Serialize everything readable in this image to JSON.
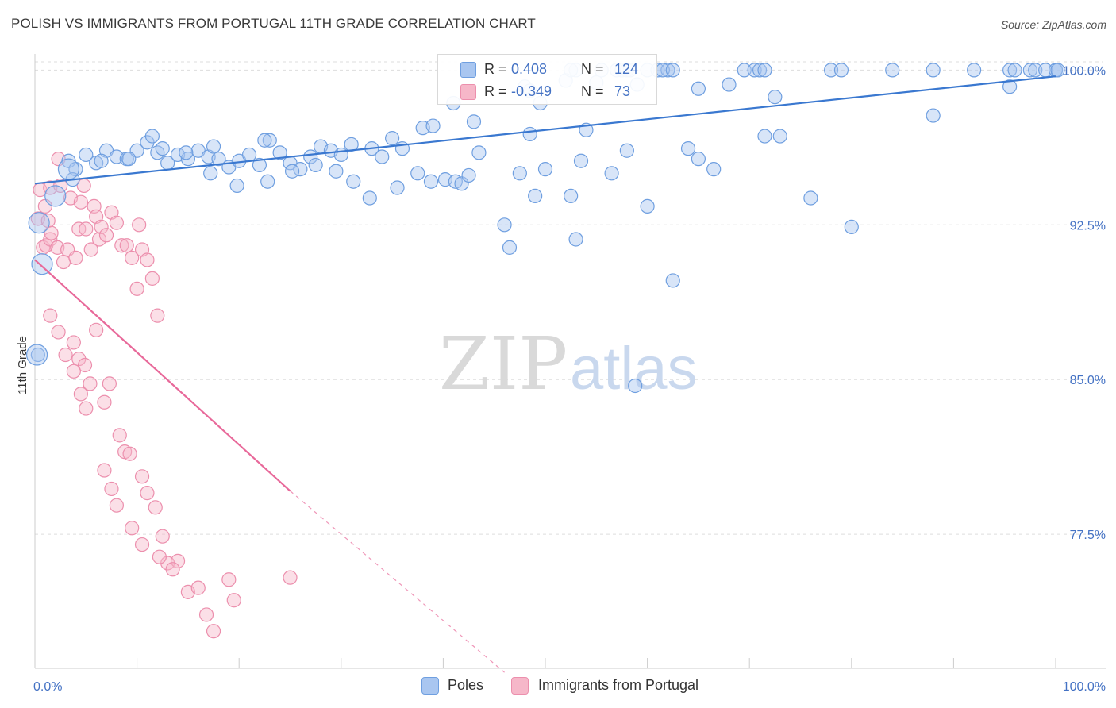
{
  "header": {
    "title": "POLISH VS IMMIGRANTS FROM PORTUGAL 11TH GRADE CORRELATION CHART",
    "source": "Source: ZipAtlas.com"
  },
  "watermark": {
    "zip": "ZIP",
    "atlas": "atlas"
  },
  "legend": {
    "rows": [
      {
        "r_label": "R =",
        "r_value": "0.408",
        "n_label": "N =",
        "n_value": "124",
        "color": "#a9c6f0"
      },
      {
        "r_label": "R =",
        "r_value": "-0.349",
        "n_label": "N =",
        "n_value": "73",
        "color": "#f6b7c9"
      }
    ]
  },
  "bottom_legend": {
    "items": [
      {
        "label": "Poles",
        "color": "#a9c6f0"
      },
      {
        "label": "Immigrants from Portugal",
        "color": "#f6b7c9"
      }
    ]
  },
  "colors": {
    "blue_fill": "#a9c6f0",
    "blue_stroke": "#6f9fe0",
    "blue_line": "#3a78d0",
    "pink_fill": "#f6b7c9",
    "pink_stroke": "#ec8fad",
    "pink_line": "#e8699a",
    "grid": "#dddddd",
    "axis_label": "#4472c4"
  },
  "chart_data": {
    "type": "scatter",
    "title": "POLISH VS IMMIGRANTS FROM PORTUGAL 11TH GRADE CORRELATION CHART",
    "xlabel": "",
    "ylabel": "11th Grade",
    "xlim": [
      0,
      100
    ],
    "ylim": [
      71.0,
      100.4
    ],
    "x_tick_labels": [
      "0.0%",
      "100.0%"
    ],
    "y_ticks": [
      77.5,
      85.0,
      92.5,
      100.0
    ],
    "y_tick_labels": [
      "77.5%",
      "85.0%",
      "92.5%",
      "100.0%"
    ],
    "grid": true,
    "legend_position": "top-center",
    "series": [
      {
        "name": "Poles",
        "r": 0.408,
        "n": 124,
        "trend": {
          "x": [
            0,
            100
          ],
          "y": [
            94.5,
            99.7
          ],
          "dashed_after": null
        },
        "points": [
          [
            3.3,
            95.6
          ],
          [
            4,
            95.2
          ],
          [
            5,
            95.9
          ],
          [
            6,
            95.5
          ],
          [
            7,
            96.1
          ],
          [
            8,
            95.8
          ],
          [
            9,
            95.7
          ],
          [
            10,
            96.1
          ],
          [
            11,
            96.5
          ],
          [
            12,
            96.0
          ],
          [
            13,
            95.5
          ],
          [
            14,
            95.9
          ],
          [
            15,
            95.7
          ],
          [
            16,
            96.1
          ],
          [
            17,
            95.8
          ],
          [
            18,
            95.7
          ],
          [
            19,
            95.3
          ],
          [
            20,
            95.6
          ],
          [
            21,
            95.9
          ],
          [
            22,
            95.4
          ],
          [
            23,
            96.6
          ],
          [
            24,
            96.0
          ],
          [
            25,
            95.5
          ],
          [
            26,
            95.2
          ],
          [
            27,
            95.8
          ],
          [
            28,
            96.3
          ],
          [
            29,
            96.1
          ],
          [
            30,
            95.9
          ],
          [
            31,
            96.4
          ],
          [
            33,
            96.2
          ],
          [
            34,
            95.8
          ],
          [
            35,
            96.7
          ],
          [
            36,
            96.2
          ],
          [
            38,
            97.2
          ],
          [
            39,
            97.3
          ],
          [
            41,
            98.4
          ],
          [
            43,
            97.5
          ],
          [
            11.5,
            96.8
          ],
          [
            22.5,
            96.6
          ],
          [
            17.5,
            96.3
          ],
          [
            3.7,
            94.7
          ],
          [
            6.5,
            95.6
          ],
          [
            9.2,
            95.7
          ],
          [
            12.5,
            96.2
          ],
          [
            14.8,
            96.0
          ],
          [
            17.2,
            95.0
          ],
          [
            19.8,
            94.4
          ],
          [
            22.8,
            94.6
          ],
          [
            25.2,
            95.1
          ],
          [
            27.5,
            95.4
          ],
          [
            29.5,
            95.1
          ],
          [
            31.2,
            94.6
          ],
          [
            32.8,
            93.8
          ],
          [
            35.5,
            94.3
          ],
          [
            37.5,
            95.0
          ],
          [
            38.8,
            94.6
          ],
          [
            40.2,
            94.7
          ],
          [
            41.2,
            94.6
          ],
          [
            41.8,
            94.5
          ],
          [
            42.5,
            94.9
          ],
          [
            43.5,
            96.0
          ],
          [
            46,
            92.5
          ],
          [
            46.5,
            91.4
          ],
          [
            47.5,
            95.0
          ],
          [
            48.5,
            96.9
          ],
          [
            49,
            93.9
          ],
          [
            50,
            95.2
          ],
          [
            52.5,
            93.9
          ],
          [
            53,
            91.8
          ],
          [
            53.5,
            95.6
          ],
          [
            54,
            97.1
          ],
          [
            56.5,
            95.0
          ],
          [
            58,
            96.1
          ],
          [
            60,
            93.4
          ],
          [
            62.5,
            89.8
          ],
          [
            64,
            96.2
          ],
          [
            65,
            95.7
          ],
          [
            66.5,
            95.2
          ],
          [
            71.5,
            96.8
          ],
          [
            73,
            96.8
          ],
          [
            76,
            93.8
          ],
          [
            80,
            92.4
          ],
          [
            88,
            97.8
          ],
          [
            95.5,
            99.2
          ],
          [
            100,
            100
          ],
          [
            48,
            99.2
          ],
          [
            53,
            100
          ],
          [
            57,
            100
          ],
          [
            57.5,
            100
          ],
          [
            58,
            100
          ],
          [
            58.3,
            100
          ],
          [
            60,
            100
          ],
          [
            61,
            100
          ],
          [
            62,
            100
          ],
          [
            69.5,
            100
          ],
          [
            70.5,
            100
          ],
          [
            71,
            100
          ],
          [
            71.5,
            100
          ],
          [
            78,
            100
          ],
          [
            79,
            100
          ],
          [
            84,
            100
          ],
          [
            88,
            100
          ],
          [
            92,
            100
          ],
          [
            95.5,
            100
          ],
          [
            96,
            100
          ],
          [
            97.5,
            100
          ],
          [
            98,
            100
          ],
          [
            99,
            100
          ],
          [
            100,
            100
          ],
          [
            100.2,
            100
          ],
          [
            49.5,
            98.4
          ],
          [
            48.5,
            99.0
          ],
          [
            52,
            99.5
          ],
          [
            55,
            99.4
          ],
          [
            59,
            99.3
          ],
          [
            65,
            99.1
          ],
          [
            68,
            99.3
          ],
          [
            72.5,
            98.7
          ],
          [
            52.5,
            100
          ],
          [
            55.5,
            100
          ],
          [
            61.5,
            100
          ],
          [
            62.5,
            100
          ],
          [
            0.3,
            86.2
          ],
          [
            58.8,
            84.7
          ]
        ]
      },
      {
        "name": "Immigrants from Portugal",
        "r": -0.349,
        "n": 73,
        "trend": {
          "x": [
            0,
            25,
            46
          ],
          "y": [
            90.8,
            79.6,
            70.8
          ],
          "dashed_after": 25
        },
        "points": [
          [
            0.3,
            92.8
          ],
          [
            0.5,
            94.2
          ],
          [
            0.8,
            91.4
          ],
          [
            1,
            93.4
          ],
          [
            1.1,
            91.5
          ],
          [
            1.3,
            92.7
          ],
          [
            1.5,
            91.8
          ],
          [
            1.6,
            92.1
          ],
          [
            2.2,
            91.4
          ],
          [
            1.5,
            94.3
          ],
          [
            2.3,
            95.7
          ],
          [
            2.5,
            94.4
          ],
          [
            2.8,
            90.7
          ],
          [
            3.2,
            91.3
          ],
          [
            3.5,
            93.8
          ],
          [
            4,
            90.9
          ],
          [
            4.3,
            92.3
          ],
          [
            4.5,
            93.6
          ],
          [
            4.8,
            94.4
          ],
          [
            5,
            92.3
          ],
          [
            5.5,
            91.3
          ],
          [
            5.8,
            93.4
          ],
          [
            6,
            92.9
          ],
          [
            6.3,
            91.8
          ],
          [
            6.5,
            92.4
          ],
          [
            7,
            92.0
          ],
          [
            7.5,
            93.1
          ],
          [
            8,
            92.6
          ],
          [
            8.5,
            91.5
          ],
          [
            9,
            91.5
          ],
          [
            9.5,
            90.9
          ],
          [
            10,
            89.4
          ],
          [
            10.2,
            92.5
          ],
          [
            10.5,
            91.3
          ],
          [
            11,
            90.8
          ],
          [
            11.5,
            89.9
          ],
          [
            12,
            88.1
          ],
          [
            1.5,
            88.1
          ],
          [
            2.3,
            87.3
          ],
          [
            3,
            86.2
          ],
          [
            3.8,
            86.8
          ],
          [
            4.3,
            86.0
          ],
          [
            4.9,
            85.7
          ],
          [
            5.4,
            84.8
          ],
          [
            6,
            87.4
          ],
          [
            6.8,
            83.9
          ],
          [
            7.3,
            84.8
          ],
          [
            8.3,
            82.3
          ],
          [
            8.8,
            81.5
          ],
          [
            9.3,
            81.4
          ],
          [
            10.5,
            80.3
          ],
          [
            11,
            79.5
          ],
          [
            11.8,
            78.8
          ],
          [
            12.5,
            77.4
          ],
          [
            13,
            76.1
          ],
          [
            14,
            76.2
          ],
          [
            15,
            74.7
          ],
          [
            16,
            74.9
          ],
          [
            16.8,
            73.6
          ],
          [
            17.5,
            72.8
          ],
          [
            19,
            75.3
          ],
          [
            19.5,
            74.3
          ],
          [
            25,
            75.4
          ],
          [
            3.8,
            85.4
          ],
          [
            4.5,
            84.3
          ],
          [
            5,
            83.6
          ],
          [
            6.8,
            80.6
          ],
          [
            7.5,
            79.7
          ],
          [
            8,
            78.9
          ],
          [
            9.5,
            77.8
          ],
          [
            10.5,
            77.0
          ],
          [
            12.2,
            76.4
          ],
          [
            13.5,
            75.8
          ]
        ]
      }
    ]
  }
}
